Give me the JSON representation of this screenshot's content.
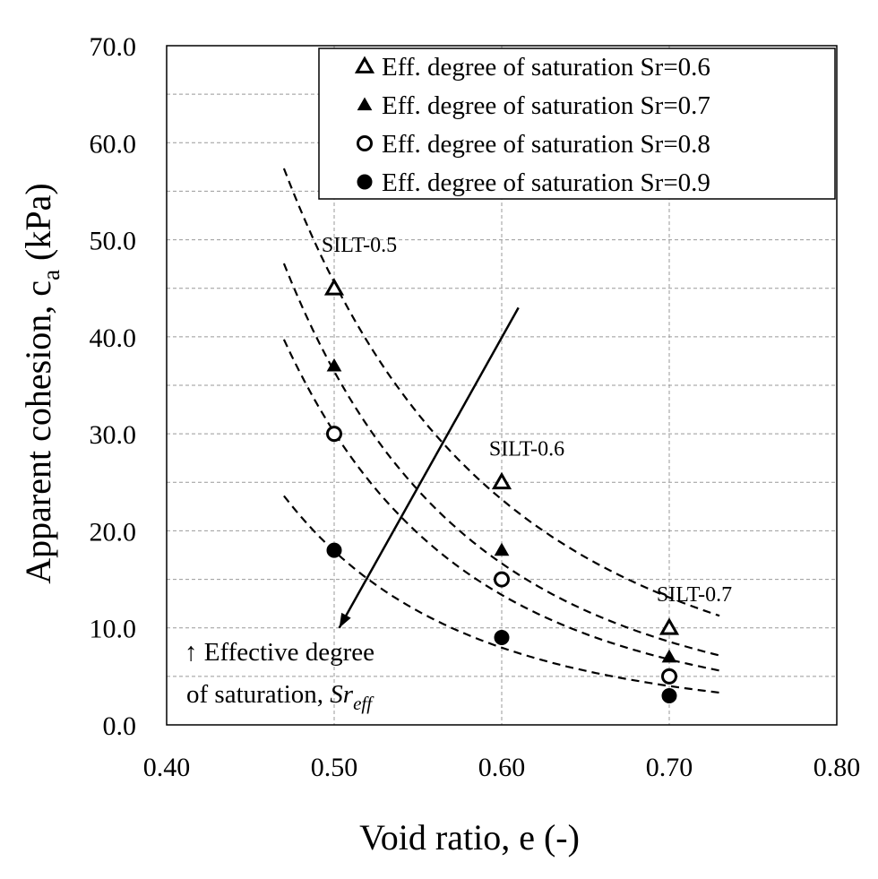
{
  "chart_data": {
    "type": "scatter",
    "xlabel": "Void ratio, e (-)",
    "ylabel_main": "Apparent cohesion, c",
    "ylabel_sub": "a",
    "ylabel_unit": " (kPa)",
    "xlim": [
      0.4,
      0.8
    ],
    "ylim": [
      0.0,
      70.0
    ],
    "x_ticks": [
      "0.40",
      "0.50",
      "0.60",
      "0.70",
      "0.80"
    ],
    "y_ticks": [
      "0.0",
      "10.0",
      "20.0",
      "30.0",
      "40.0",
      "50.0",
      "60.0",
      "70.0"
    ],
    "grid": true,
    "legend_position": "top-right",
    "series": [
      {
        "name": "Eff. degree of saturation Sr=0.6",
        "marker": "triangle-open",
        "x": [
          0.5,
          0.6,
          0.7
        ],
        "y": [
          45.0,
          25.0,
          10.0
        ],
        "trend_x": [
          0.47,
          0.73
        ],
        "trend_a": 3.51,
        "trend_b": -3.7
      },
      {
        "name": "Eff. degree of saturation Sr=0.7",
        "marker": "triangle-filled",
        "x": [
          0.5,
          0.6,
          0.7
        ],
        "y": [
          37.0,
          18.0,
          7.0
        ],
        "trend_x": [
          0.47,
          0.73
        ],
        "trend_a": 1.85,
        "trend_b": -4.3
      },
      {
        "name": "Eff. degree of saturation Sr=0.8",
        "marker": "circle-open",
        "x": [
          0.5,
          0.6,
          0.7
        ],
        "y": [
          30.0,
          15.0,
          5.0
        ],
        "trend_x": [
          0.47,
          0.73
        ],
        "trend_a": 1.38,
        "trend_b": -4.45
      },
      {
        "name": "Eff. degree of saturation Sr=0.9",
        "marker": "circle-filled",
        "x": [
          0.5,
          0.6,
          0.7
        ],
        "y": [
          18.0,
          9.0,
          3.0
        ],
        "trend_x": [
          0.47,
          0.73
        ],
        "trend_a": 0.82,
        "trend_b": -4.45
      }
    ],
    "annotations": [
      {
        "text": "SILT-0.5",
        "x": 0.515,
        "y": 49.5
      },
      {
        "text": "SILT-0.6",
        "x": 0.615,
        "y": 28.5
      },
      {
        "text": "SILT-0.7",
        "x": 0.715,
        "y": 13.5
      }
    ],
    "arrow": {
      "from": [
        0.61,
        43.0
      ],
      "to": [
        0.503,
        10.0
      ]
    },
    "arrow_label_line1": "↑ Effective degree",
    "arrow_label_line2": "of saturation, ",
    "arrow_label_sr": "Sr",
    "arrow_label_eff": "eff"
  }
}
